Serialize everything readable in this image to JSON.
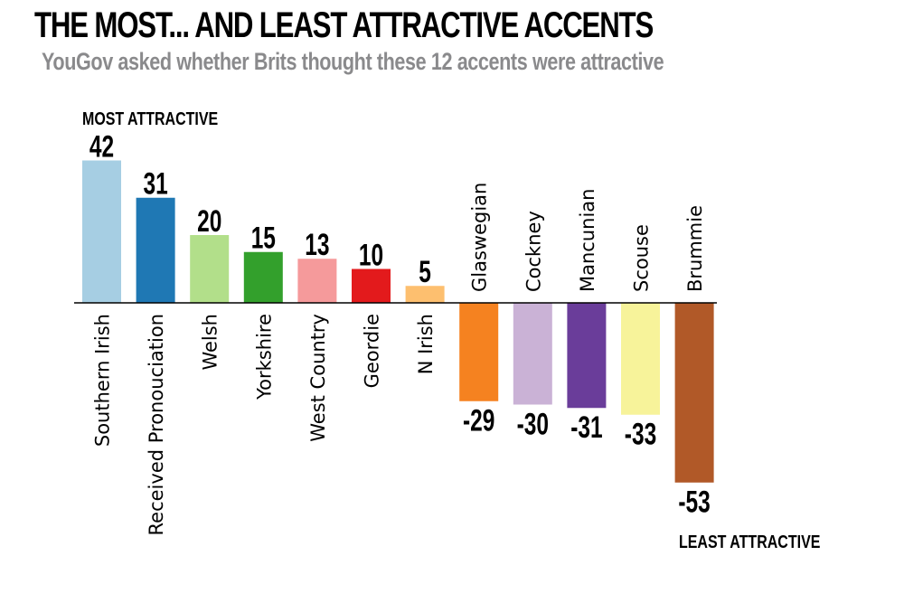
{
  "chart_data": {
    "type": "bar",
    "title": "THE MOST... AND LEAST ATTRACTIVE ACCENTS",
    "subtitle": "YouGov asked whether Brits thought these 12 accents were attractive",
    "xlabel": "",
    "ylabel": "",
    "ylim": [
      -53,
      42
    ],
    "grid": false,
    "legend": "none",
    "categories": [
      "Southern Irish",
      "Received Pronouciation",
      "Welsh",
      "Yorkshire",
      "West Country",
      "Geordie",
      "N Irish",
      "Glaswegian",
      "Cockney",
      "Mancunian",
      "Scouse",
      "Brummie"
    ],
    "values": [
      42,
      31,
      20,
      15,
      13,
      10,
      5,
      -29,
      -30,
      -31,
      -33,
      -53
    ],
    "colors": [
      "#a6cee3",
      "#1f78b4",
      "#b2df8a",
      "#33a02c",
      "#f59a9b",
      "#e31a1c",
      "#fdbf6f",
      "#f58220",
      "#cab2d6",
      "#6a3d9a",
      "#f7f39a",
      "#b15928"
    ],
    "annotations": {
      "most": "MOST ATTRACTIVE",
      "least": "LEAST ATTRACTIVE"
    }
  }
}
